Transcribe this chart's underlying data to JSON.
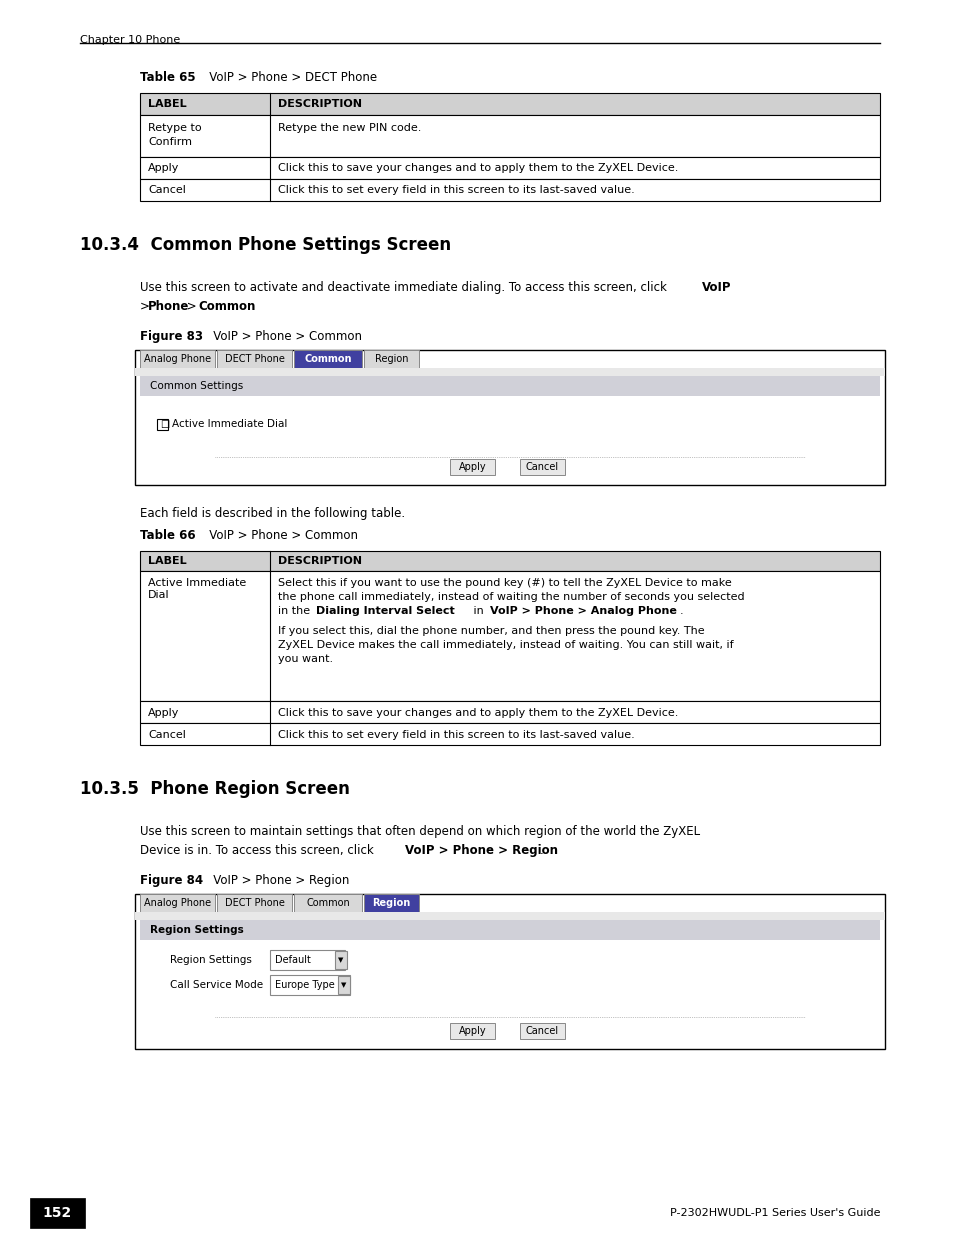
{
  "page_width": 9.54,
  "page_height": 12.35,
  "bg_color": "#ffffff",
  "header_text": "Chapter 10 Phone",
  "footer_page": "152",
  "footer_right": "P-2302HWUDL-P1 Series User's Guide",
  "table65_title": "Table 65   VoIP > Phone > DECT Phone",
  "table65_header": [
    "LABEL",
    "DESCRIPTION"
  ],
  "table65_rows": [
    [
      "Retype to\nConfirm",
      "Retype the new PIN code."
    ],
    [
      "Apply",
      "Click this to save your changes and to apply them to the ZyXEL Device."
    ],
    [
      "Cancel",
      "Click this to set every field in this screen to its last-saved value."
    ]
  ],
  "section_title": "10.3.4  Common Phone Settings Screen",
  "section_para": "Use this screen to activate and deactivate immediate dialing. To access this screen, click VoIP > Phone > Common.",
  "section_para_bold_parts": [
    "VoIP",
    "> Phone > Common"
  ],
  "figure83_title": "Figure 83   VoIP > Phone > Common",
  "figure83_tabs": [
    "Analog Phone",
    "DECT Phone",
    "Common",
    "Region"
  ],
  "figure83_active_tab": 2,
  "figure83_section_label": "Common Settings",
  "figure83_checkbox_label": "Active Immediate Dial",
  "figure83_buttons": [
    "Apply",
    "Cancel"
  ],
  "between_text": "Each field is described in the following table.",
  "table66_title": "Table 66   VoIP > Phone > Common",
  "table66_header": [
    "LABEL",
    "DESCRIPTION"
  ],
  "table66_rows": [
    [
      "Active Immediate\nDial",
      "Select this if you want to use the pound key (#) to tell the ZyXEL Device to make the phone call immediately, instead of waiting the number of seconds you selected in the Dialing Interval Select in VoIP > Phone > Analog Phone.\n\nIf you select this, dial the phone number, and then press the pound key. The ZyXEL Device makes the call immediately, instead of waiting. You can still wait, if you want."
    ],
    [
      "Apply",
      "Click this to save your changes and to apply them to the ZyXEL Device."
    ],
    [
      "Cancel",
      "Click this to set every field in this screen to its last-saved value."
    ]
  ],
  "section2_title": "10.3.5  Phone Region Screen",
  "section2_para": "Use this screen to maintain settings that often depend on which region of the world the ZyXEL Device is in. To access this screen, click VoIP > Phone > Region.",
  "section2_para_bold": [
    "VoIP > Phone > Region"
  ],
  "figure84_title": "Figure 84   VoIP > Phone > Region",
  "figure84_tabs": [
    "Analog Phone",
    "DECT Phone",
    "Common",
    "Region"
  ],
  "figure84_active_tab": 3,
  "figure84_section_label": "Region Settings",
  "figure84_fields": [
    [
      "Region Settings",
      "Default"
    ],
    [
      "Call Service Mode",
      "Europe Type"
    ]
  ],
  "figure84_buttons": [
    "Apply",
    "Cancel"
  ],
  "tab_active_color": "#4040a0",
  "tab_inactive_color": "#d8d8d8",
  "tab_border_color": "#888888",
  "panel_bg_color": "#f0f0f0",
  "section_bar_color": "#d0d0d8",
  "table_header_bg": "#d0d0d0",
  "table_border_color": "#000000"
}
